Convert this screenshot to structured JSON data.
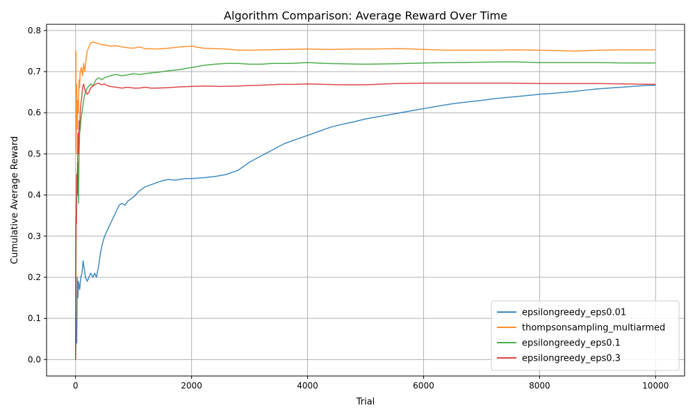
{
  "chart_data": {
    "type": "line",
    "title": "Algorithm Comparison: Average Reward Over Time",
    "xlabel": "Trial",
    "ylabel": "Cumulative Average Reward",
    "xlim": [
      -500,
      10500
    ],
    "ylim": [
      -0.04,
      0.815
    ],
    "xticks": [
      0,
      2000,
      4000,
      6000,
      8000,
      10000
    ],
    "xtick_labels": [
      "0",
      "2000",
      "4000",
      "6000",
      "8000",
      "10000"
    ],
    "yticks": [
      0.0,
      0.1,
      0.2,
      0.3,
      0.4,
      0.5,
      0.6,
      0.7,
      0.8
    ],
    "ytick_labels": [
      "0.0",
      "0.1",
      "0.2",
      "0.3",
      "0.4",
      "0.5",
      "0.6",
      "0.7",
      "0.8"
    ],
    "grid": true,
    "legend_position": "bottom-right",
    "series": [
      {
        "name": "epsilongreedy_eps0.01",
        "color": "#1f77b4",
        "x": [
          0,
          10,
          20,
          30,
          40,
          50,
          70,
          90,
          110,
          130,
          150,
          170,
          200,
          230,
          260,
          300,
          330,
          360,
          400,
          430,
          460,
          500,
          550,
          600,
          650,
          700,
          750,
          800,
          850,
          900,
          1000,
          1100,
          1200,
          1300,
          1400,
          1500,
          1600,
          1700,
          1800,
          1900,
          2000,
          2200,
          2400,
          2600,
          2800,
          3000,
          3200,
          3400,
          3600,
          3800,
          4000,
          4200,
          4400,
          4600,
          4800,
          5000,
          5200,
          5400,
          5600,
          5800,
          6000,
          6200,
          6500,
          6800,
          7000,
          7200,
          7500,
          7800,
          8000,
          8300,
          8600,
          8800,
          9000,
          9300,
          9600,
          9800,
          10000
        ],
        "y": [
          0.0,
          0.1,
          0.04,
          0.2,
          0.15,
          0.19,
          0.17,
          0.2,
          0.21,
          0.24,
          0.22,
          0.2,
          0.19,
          0.2,
          0.21,
          0.2,
          0.21,
          0.2,
          0.23,
          0.26,
          0.28,
          0.3,
          0.315,
          0.33,
          0.345,
          0.36,
          0.375,
          0.38,
          0.375,
          0.385,
          0.395,
          0.41,
          0.42,
          0.425,
          0.43,
          0.435,
          0.438,
          0.436,
          0.438,
          0.44,
          0.44,
          0.442,
          0.445,
          0.45,
          0.46,
          0.48,
          0.495,
          0.51,
          0.525,
          0.535,
          0.545,
          0.555,
          0.565,
          0.572,
          0.578,
          0.585,
          0.59,
          0.595,
          0.6,
          0.605,
          0.61,
          0.615,
          0.622,
          0.627,
          0.63,
          0.634,
          0.638,
          0.642,
          0.645,
          0.648,
          0.652,
          0.655,
          0.658,
          0.661,
          0.664,
          0.666,
          0.667
        ]
      },
      {
        "name": "thompsonsampling_multiarmed",
        "color": "#ff7f0e",
        "x": [
          0,
          5,
          10,
          20,
          30,
          40,
          50,
          60,
          70,
          80,
          100,
          120,
          140,
          160,
          180,
          200,
          230,
          260,
          300,
          350,
          400,
          450,
          500,
          600,
          700,
          800,
          900,
          1000,
          1100,
          1200,
          1400,
          1600,
          1800,
          2000,
          2200,
          2400,
          2600,
          2800,
          3000,
          3300,
          3600,
          4000,
          4400,
          4800,
          5200,
          5600,
          6000,
          6400,
          6800,
          7200,
          7600,
          8000,
          8400,
          8600,
          9000,
          9500,
          10000
        ],
        "y": [
          0.74,
          0.75,
          0.5,
          0.67,
          0.56,
          0.63,
          0.6,
          0.68,
          0.66,
          0.7,
          0.71,
          0.69,
          0.72,
          0.7,
          0.73,
          0.75,
          0.76,
          0.77,
          0.772,
          0.77,
          0.768,
          0.765,
          0.765,
          0.762,
          0.763,
          0.76,
          0.758,
          0.757,
          0.76,
          0.756,
          0.755,
          0.757,
          0.76,
          0.762,
          0.757,
          0.756,
          0.755,
          0.752,
          0.752,
          0.753,
          0.754,
          0.755,
          0.754,
          0.755,
          0.755,
          0.756,
          0.754,
          0.752,
          0.752,
          0.752,
          0.753,
          0.752,
          0.751,
          0.75,
          0.752,
          0.753,
          0.753
        ]
      },
      {
        "name": "epsilongreedy_eps0.1",
        "color": "#2ca02c",
        "x": [
          0,
          10,
          20,
          30,
          40,
          50,
          60,
          70,
          80,
          90,
          110,
          130,
          150,
          170,
          200,
          230,
          260,
          300,
          350,
          400,
          450,
          500,
          550,
          600,
          650,
          700,
          800,
          900,
          1000,
          1100,
          1200,
          1300,
          1400,
          1500,
          1600,
          1800,
          2000,
          2200,
          2400,
          2600,
          2800,
          3000,
          3200,
          3400,
          3700,
          4000,
          4300,
          4600,
          5000,
          5500,
          6000,
          6500,
          7000,
          7500,
          8000,
          8500,
          9000,
          9500,
          10000
        ],
        "y": [
          0.0,
          0.34,
          0.4,
          0.45,
          0.48,
          0.38,
          0.5,
          0.55,
          0.56,
          0.58,
          0.6,
          0.62,
          0.64,
          0.65,
          0.66,
          0.665,
          0.67,
          0.665,
          0.68,
          0.685,
          0.68,
          0.685,
          0.688,
          0.69,
          0.692,
          0.693,
          0.69,
          0.692,
          0.695,
          0.693,
          0.695,
          0.697,
          0.698,
          0.7,
          0.702,
          0.705,
          0.71,
          0.715,
          0.718,
          0.72,
          0.72,
          0.718,
          0.718,
          0.72,
          0.72,
          0.722,
          0.72,
          0.719,
          0.718,
          0.719,
          0.721,
          0.722,
          0.723,
          0.724,
          0.722,
          0.722,
          0.722,
          0.721,
          0.721
        ]
      },
      {
        "name": "epsilongreedy_eps0.3",
        "color": "#d62728",
        "x": [
          0,
          5,
          10,
          15,
          20,
          30,
          40,
          50,
          60,
          70,
          80,
          90,
          100,
          120,
          140,
          160,
          180,
          200,
          230,
          260,
          300,
          350,
          400,
          450,
          500,
          550,
          600,
          700,
          800,
          900,
          1000,
          1100,
          1200,
          1300,
          1400,
          1600,
          1800,
          2000,
          2200,
          2500,
          2800,
          3000,
          3200,
          3500,
          3800,
          4000,
          4300,
          4600,
          5000,
          5500,
          6000,
          6500,
          7000,
          7500,
          8000,
          8500,
          9000,
          9500,
          10000
        ],
        "y": [
          0.0,
          0.3,
          0.35,
          0.33,
          0.45,
          0.4,
          0.55,
          0.5,
          0.58,
          0.56,
          0.6,
          0.62,
          0.63,
          0.66,
          0.67,
          0.655,
          0.65,
          0.645,
          0.65,
          0.66,
          0.665,
          0.67,
          0.672,
          0.668,
          0.67,
          0.666,
          0.664,
          0.662,
          0.66,
          0.662,
          0.66,
          0.66,
          0.662,
          0.66,
          0.66,
          0.661,
          0.663,
          0.664,
          0.665,
          0.664,
          0.665,
          0.666,
          0.667,
          0.669,
          0.669,
          0.67,
          0.669,
          0.668,
          0.668,
          0.671,
          0.672,
          0.672,
          0.672,
          0.672,
          0.671,
          0.671,
          0.671,
          0.67,
          0.669
        ]
      }
    ]
  }
}
